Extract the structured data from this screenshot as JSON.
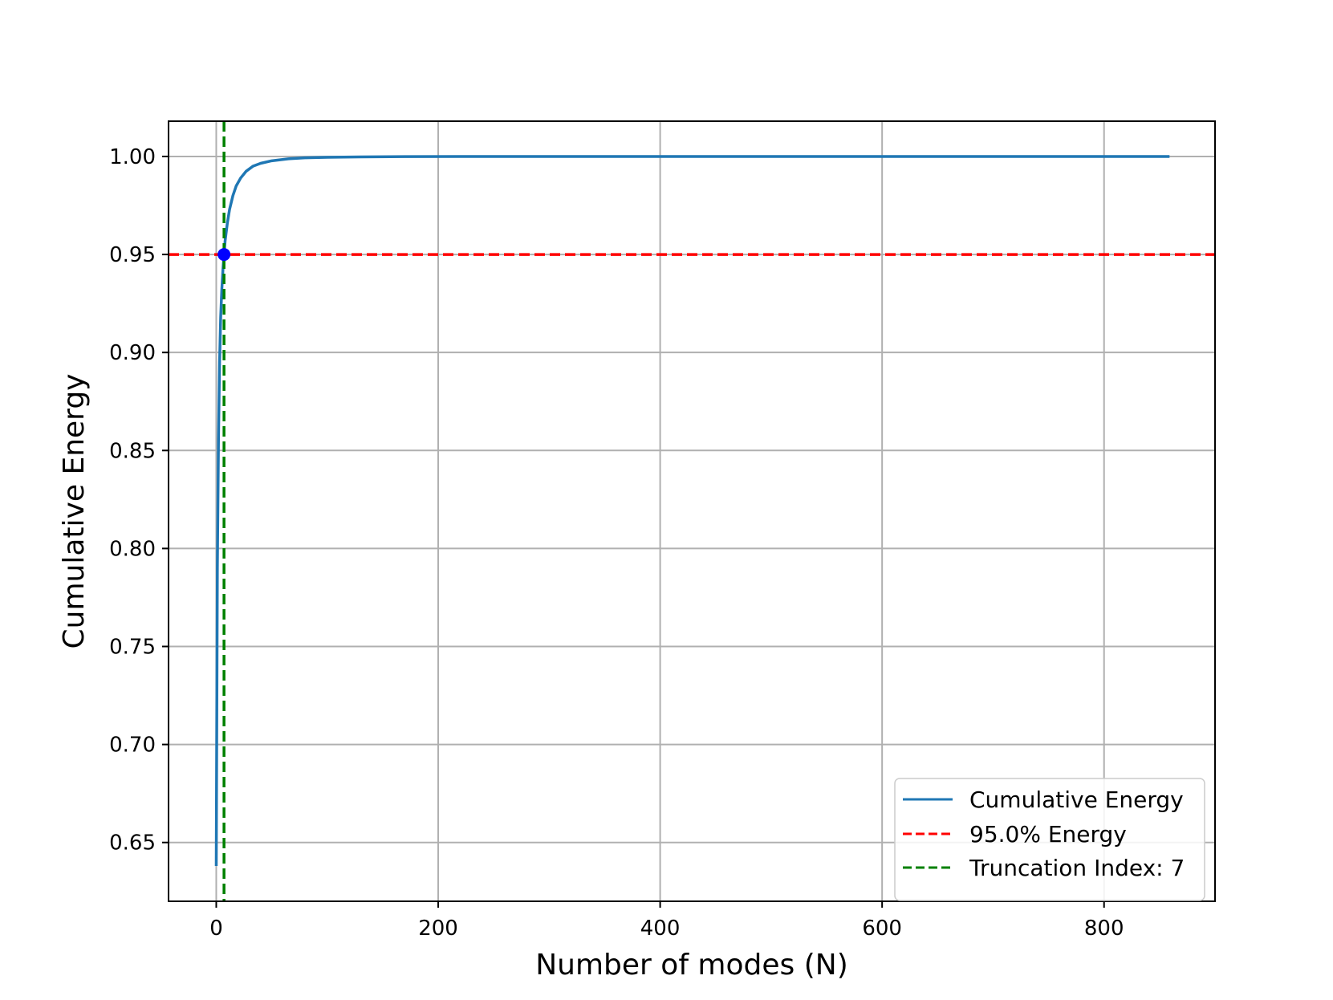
{
  "chart_data": {
    "type": "line",
    "title": "",
    "xlabel": "Number of modes (N)",
    "ylabel": "Cumulative Energy",
    "xlim": [
      -43,
      900
    ],
    "ylim": [
      0.62,
      1.018
    ],
    "xticks": [
      "0",
      "200",
      "400",
      "600",
      "800"
    ],
    "xtick_values": [
      0,
      200,
      400,
      600,
      800
    ],
    "yticks": [
      "0.65",
      "0.70",
      "0.75",
      "0.80",
      "0.85",
      "0.90",
      "0.95",
      "1.00"
    ],
    "ytick_values": [
      0.65,
      0.7,
      0.75,
      0.8,
      0.85,
      0.9,
      0.95,
      1.0
    ],
    "grid": true,
    "legend_position": "lower-right",
    "series": [
      {
        "name": "Cumulative Energy",
        "color": "#1f77b4",
        "style": "solid",
        "x": [
          0,
          1,
          2,
          3,
          4,
          5,
          6,
          7,
          8,
          10,
          12,
          15,
          18,
          22,
          27,
          33,
          40,
          50,
          65,
          80,
          100,
          130,
          170,
          220,
          300,
          400,
          500,
          600,
          700,
          800,
          859
        ],
        "y": [
          0.638,
          0.79,
          0.855,
          0.895,
          0.918,
          0.932,
          0.942,
          0.95,
          0.957,
          0.966,
          0.973,
          0.98,
          0.985,
          0.989,
          0.9925,
          0.995,
          0.9965,
          0.9978,
          0.9988,
          0.9993,
          0.9996,
          0.9998,
          0.99992,
          0.99997,
          0.99999,
          1.0,
          1.0,
          1.0,
          1.0,
          1.0,
          1.0
        ]
      }
    ],
    "reference_lines": [
      {
        "name": "95.0% Energy",
        "orientation": "horizontal",
        "value": 0.95,
        "color": "#ff0000",
        "style": "dashed"
      },
      {
        "name": "Truncation Index: 7",
        "orientation": "vertical",
        "value": 7,
        "color": "#008000",
        "style": "dashed"
      }
    ],
    "marker": {
      "x": 7,
      "y": 0.95,
      "color": "#0000ff"
    }
  }
}
